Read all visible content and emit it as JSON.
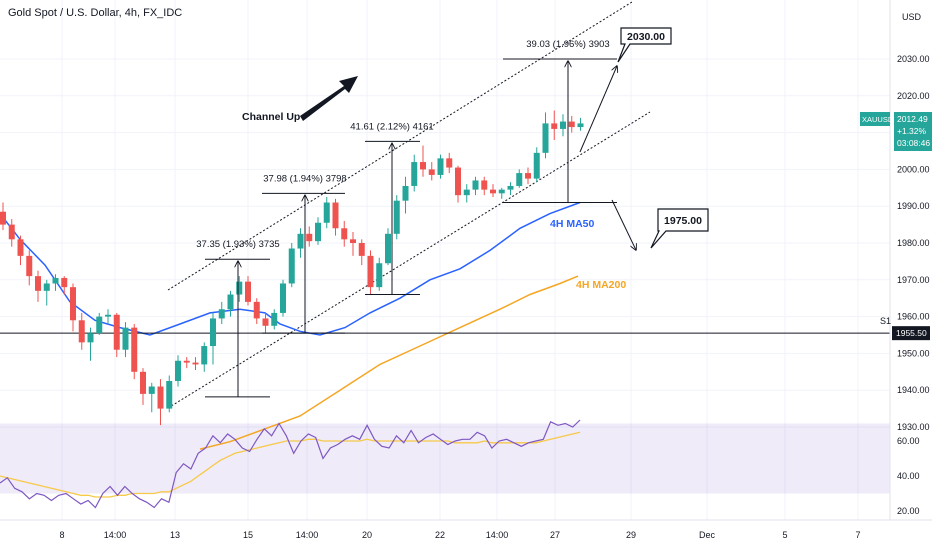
{
  "header": {
    "title": "Gold Spot / U.S. Dollar, 4h, FX_IDC",
    "currency": "USD"
  },
  "price_axis": {
    "ticks": [
      2030,
      2020,
      2010,
      2000,
      1990,
      1980,
      1970,
      1960,
      1950,
      1940,
      1930
    ],
    "tick_labels": [
      "2030.00",
      "2020.00",
      "2010.00",
      "2000.00",
      "1990.00",
      "1980.00",
      "1970.00",
      "1960.00",
      "1950.00",
      "1940.00",
      "1930.00"
    ]
  },
  "rsi_axis": {
    "ticks": [
      60,
      40,
      20
    ],
    "tick_labels": [
      "60.00",
      "40.00",
      "20.00"
    ]
  },
  "time_axis": {
    "labels": [
      "8",
      "14:00",
      "13",
      "15",
      "14:00",
      "20",
      "22",
      "14:00",
      "27",
      "29",
      "Dec",
      "5",
      "7"
    ]
  },
  "current_price": {
    "symbol": "XAUUSD",
    "price": "2012.49",
    "change": "+1.32%",
    "countdown": "03:08:46",
    "color": "#26a69a"
  },
  "s1": {
    "label": "S1",
    "price_label": "1955.50",
    "value": 1955.5
  },
  "annotations": {
    "channel": "Channel Up",
    "target_up": "2030.00",
    "target_down": "1975.00",
    "ma50": "4H MA50",
    "ma200": "4H MA200",
    "m1": "37.35 (1.93%) 3735",
    "m2": "37.98 (1.94%) 3798",
    "m3": "41.61 (2.12%) 4161",
    "m4": "39.03 (1.96%) 3903"
  },
  "colors": {
    "up": "#26a69a",
    "down": "#ef5350",
    "ma50": "#2962ff",
    "ma200": "#f5a623",
    "rsi": "#7e57c2",
    "rsi_ma": "#f7c948"
  },
  "chart_data": {
    "type": "candlestick",
    "title": "Gold Spot / U.S. Dollar, 4h, FX_IDC",
    "ylim": [
      1925,
      2037
    ],
    "candles": [
      [
        1988.5,
        1991,
        1983.5,
        1985
      ],
      [
        1985,
        1986.5,
        1979,
        1981
      ],
      [
        1981,
        1982,
        1974,
        1976.5
      ],
      [
        1976.5,
        1978,
        1968.5,
        1971
      ],
      [
        1971,
        1972.5,
        1964,
        1967
      ],
      [
        1967,
        1970,
        1963,
        1969
      ],
      [
        1969,
        1971.5,
        1967,
        1970.5
      ],
      [
        1970.5,
        1971,
        1966,
        1968
      ],
      [
        1968,
        1969,
        1956,
        1959
      ],
      [
        1959,
        1961,
        1951,
        1953
      ],
      [
        1953,
        1957,
        1948,
        1955.5
      ],
      [
        1955.5,
        1961,
        1955,
        1960
      ],
      [
        1960,
        1962,
        1958,
        1960.5
      ],
      [
        1960.5,
        1961,
        1949,
        1951
      ],
      [
        1951,
        1958.5,
        1949,
        1957
      ],
      [
        1957,
        1958,
        1943,
        1945
      ],
      [
        1945,
        1946,
        1936,
        1939
      ],
      [
        1939,
        1942,
        1934,
        1941
      ],
      [
        1941,
        1943,
        1930.5,
        1935
      ],
      [
        1935,
        1944,
        1934,
        1942.5
      ],
      [
        1942.5,
        1949.5,
        1941,
        1948
      ],
      [
        1948,
        1949,
        1946,
        1947.5
      ],
      [
        1947.5,
        1949,
        1945.5,
        1947
      ],
      [
        1947,
        1953,
        1945,
        1952
      ],
      [
        1952,
        1961,
        1947,
        1959.5
      ],
      [
        1959.5,
        1964,
        1958,
        1962
      ],
      [
        1962,
        1967,
        1960,
        1966
      ],
      [
        1966,
        1971,
        1964,
        1969.5
      ],
      [
        1969.5,
        1971,
        1963,
        1964
      ],
      [
        1964,
        1965,
        1958,
        1959.5
      ],
      [
        1959.5,
        1961,
        1955.5,
        1957.5
      ],
      [
        1957.5,
        1962,
        1956.5,
        1961
      ],
      [
        1961,
        1970,
        1960,
        1969
      ],
      [
        1969,
        1980,
        1968,
        1978.5
      ],
      [
        1978.5,
        1984,
        1976,
        1982.5
      ],
      [
        1982.5,
        1984.5,
        1979,
        1980.5
      ],
      [
        1980.5,
        1987,
        1979.5,
        1985.5
      ],
      [
        1985.5,
        1992.5,
        1984,
        1991
      ],
      [
        1991,
        1992,
        1982,
        1984
      ],
      [
        1984,
        1986,
        1979,
        1981
      ],
      [
        1981,
        1983,
        1976.5,
        1980
      ],
      [
        1980,
        1981,
        1974,
        1976.5
      ],
      [
        1976.5,
        1978,
        1966,
        1968
      ],
      [
        1968,
        1976,
        1967,
        1974.5
      ],
      [
        1974.5,
        1984,
        1974,
        1982.5
      ],
      [
        1982.5,
        1993,
        1981,
        1991.5
      ],
      [
        1991.5,
        1998,
        1988,
        1995.5
      ],
      [
        1995.5,
        2004,
        1994,
        2002
      ],
      [
        2002,
        2006.5,
        1998,
        2000
      ],
      [
        2000,
        2002,
        1997,
        1998.5
      ],
      [
        1998.5,
        2004,
        1997.5,
        2003
      ],
      [
        2003,
        2004.5,
        1999,
        2000.5
      ],
      [
        2000.5,
        2001,
        1991,
        1993
      ],
      [
        1993,
        1996,
        1991,
        1994.5
      ],
      [
        1994.5,
        1998,
        1993,
        1997
      ],
      [
        1997,
        1998,
        1993,
        1994.5
      ],
      [
        1994.5,
        1996,
        1992.5,
        1993.5
      ],
      [
        1993.5,
        1995,
        1992,
        1994.5
      ],
      [
        1994.5,
        1996.5,
        1993,
        1995.5
      ],
      [
        1995.5,
        2000,
        1995,
        1999
      ],
      [
        1999,
        2000.5,
        1996,
        1997.5
      ],
      [
        1997.5,
        2006,
        1996.5,
        2004.5
      ],
      [
        2004.5,
        2015.5,
        2003,
        2012.5
      ],
      [
        2012.5,
        2016,
        2008,
        2011
      ],
      [
        2011,
        2015,
        2009,
        2013
      ],
      [
        2013,
        2014.5,
        2010,
        2011.5
      ],
      [
        2011.5,
        2014,
        2010.5,
        2012.5
      ]
    ],
    "ma50": [
      [
        0,
        1988
      ],
      [
        20,
        1981
      ],
      [
        45,
        1974
      ],
      [
        70,
        1964
      ],
      [
        95,
        1959
      ],
      [
        120,
        1957
      ],
      [
        150,
        1955
      ],
      [
        180,
        1958
      ],
      [
        210,
        1961
      ],
      [
        240,
        1962
      ],
      [
        265,
        1961
      ],
      [
        280,
        1958
      ],
      [
        300,
        1956
      ],
      [
        320,
        1955
      ],
      [
        345,
        1957
      ],
      [
        370,
        1961
      ],
      [
        400,
        1965
      ],
      [
        430,
        1970
      ],
      [
        460,
        1973
      ],
      [
        490,
        1978
      ],
      [
        520,
        1984
      ],
      [
        550,
        1988
      ],
      [
        580,
        1991
      ]
    ],
    "ma200": [
      [
        200,
        1924
      ],
      [
        230,
        1926
      ],
      [
        260,
        1929
      ],
      [
        300,
        1933
      ],
      [
        340,
        1940
      ],
      [
        380,
        1947
      ],
      [
        420,
        1952
      ],
      [
        460,
        1957
      ],
      [
        500,
        1962
      ],
      [
        530,
        1966
      ],
      [
        560,
        1969
      ],
      [
        578,
        1971
      ]
    ],
    "rsi": [
      36,
      39,
      33,
      31,
      27,
      30,
      29,
      26,
      29,
      30,
      27,
      24,
      26,
      22,
      30,
      34,
      29,
      34,
      30,
      27,
      25,
      22,
      27,
      25,
      42,
      47,
      44,
      53,
      56,
      63,
      59,
      64,
      61,
      56,
      54,
      61,
      67,
      63,
      70,
      63,
      53,
      60,
      64,
      62,
      50,
      56,
      58,
      61,
      63,
      61,
      69,
      61,
      57,
      56,
      63,
      59,
      66,
      59,
      62,
      64,
      61,
      58,
      60,
      61,
      61,
      65,
      63,
      56,
      60,
      61,
      59,
      57,
      59,
      60,
      61,
      71,
      69,
      70,
      68,
      72
    ],
    "rsi_ma": [
      40,
      39,
      38,
      37,
      36,
      35,
      34,
      33,
      32,
      31,
      30,
      29,
      29,
      28,
      28,
      28,
      29,
      29,
      30,
      30,
      30,
      30,
      31,
      31,
      33,
      35,
      37,
      40,
      43,
      46,
      49,
      51,
      53,
      54,
      55,
      56,
      57,
      58,
      59,
      60,
      60,
      60,
      61,
      61,
      60,
      60,
      60,
      60,
      60,
      60,
      61,
      60,
      60,
      60,
      60,
      60,
      60,
      60,
      60,
      60,
      60,
      60,
      59,
      59,
      59,
      59,
      60,
      59,
      59,
      59,
      59,
      59,
      59,
      59,
      60,
      61,
      62,
      63,
      64,
      65
    ],
    "levels": {
      "s1": 1955.5,
      "target_up": 2030.0,
      "target_down": 1975.0
    },
    "measures": [
      {
        "label": "37.35 (1.93%) 3735",
        "low": 1938.2,
        "high": 1975.6
      },
      {
        "label": "37.98 (1.94%) 3798",
        "low": 1955.5,
        "high": 1993.5
      },
      {
        "label": "41.61 (2.12%) 4161",
        "low": 1966.0,
        "high": 2007.6
      },
      {
        "label": "39.03 (1.96%) 3903",
        "low": 1991.0,
        "high": 2030.0
      }
    ]
  }
}
